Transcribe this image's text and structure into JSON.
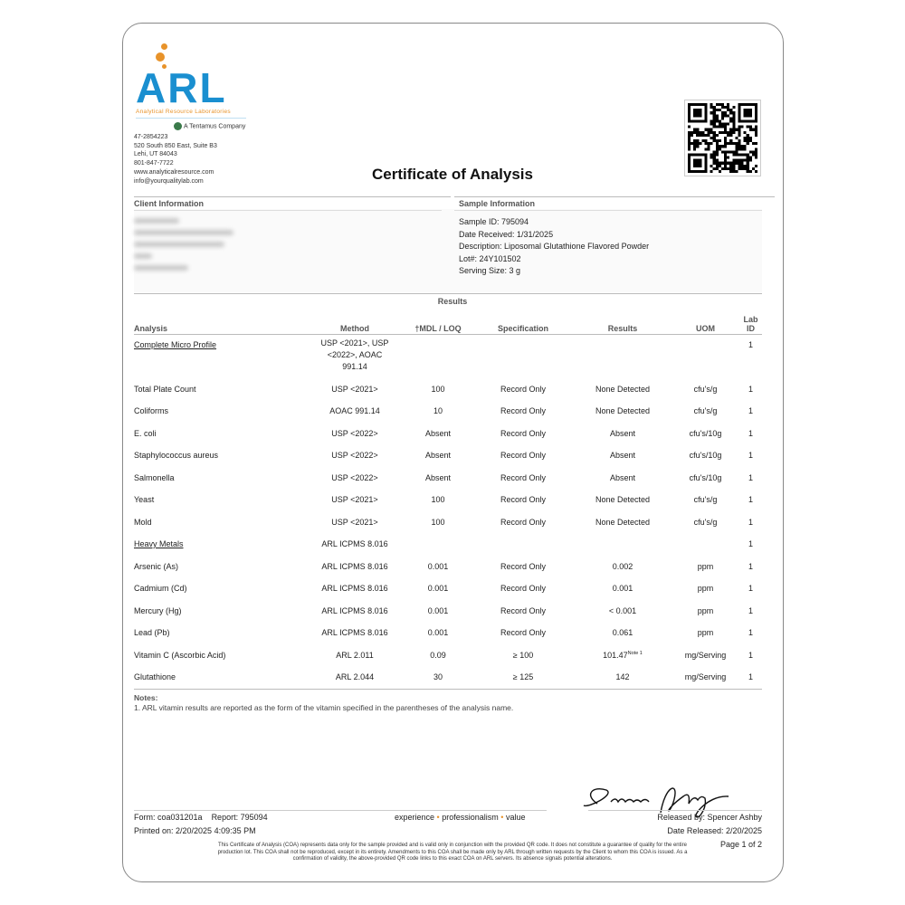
{
  "header": {
    "logo_text": "ARL",
    "logo_tagline": "Analytical Resource Laboratories",
    "parent_company": "A Tentamus Company",
    "address_lines": [
      "47-2854223",
      "520 South 850 East, Suite B3",
      "Lehi, UT 84043",
      "801-847-7722",
      "www.analyticalresource.com",
      "info@yourqualitylab.com"
    ],
    "title": "Certificate of Analysis"
  },
  "client": {
    "heading": "Client Information"
  },
  "sample": {
    "heading": "Sample Information",
    "lines": [
      "Sample ID: 795094",
      "Date Received: 1/31/2025",
      "Description: Liposomal Glutathione Flavored Powder",
      "Lot#: 24Y101502",
      "Serving Size: 3 g"
    ]
  },
  "results": {
    "heading": "Results",
    "columns": [
      "Analysis",
      "Method",
      "†MDL / LOQ",
      "Specification",
      "Results",
      "UOM",
      "Lab ID"
    ],
    "rows": [
      {
        "analysis": "Complete Micro Profile",
        "method": "USP <2021>, USP <2022>, AOAC 991.14",
        "mdl": "",
        "spec": "",
        "result": "",
        "uom": "",
        "lab": "1",
        "group": true
      },
      {
        "analysis": "Total Plate Count",
        "method": "USP <2021>",
        "mdl": "100",
        "spec": "Record Only",
        "result": "None Detected",
        "uom": "cfu's/g",
        "lab": "1"
      },
      {
        "analysis": "Coliforms",
        "method": "AOAC 991.14",
        "mdl": "10",
        "spec": "Record Only",
        "result": "None Detected",
        "uom": "cfu's/g",
        "lab": "1"
      },
      {
        "analysis": "E. coli",
        "method": "USP <2022>",
        "mdl": "Absent",
        "spec": "Record Only",
        "result": "Absent",
        "uom": "cfu's/10g",
        "lab": "1"
      },
      {
        "analysis": "Staphylococcus aureus",
        "method": "USP <2022>",
        "mdl": "Absent",
        "spec": "Record Only",
        "result": "Absent",
        "uom": "cfu's/10g",
        "lab": "1"
      },
      {
        "analysis": "Salmonella",
        "method": "USP <2022>",
        "mdl": "Absent",
        "spec": "Record Only",
        "result": "Absent",
        "uom": "cfu's/10g",
        "lab": "1"
      },
      {
        "analysis": "Yeast",
        "method": "USP <2021>",
        "mdl": "100",
        "spec": "Record Only",
        "result": "None Detected",
        "uom": "cfu's/g",
        "lab": "1"
      },
      {
        "analysis": "Mold",
        "method": "USP <2021>",
        "mdl": "100",
        "spec": "Record Only",
        "result": "None Detected",
        "uom": "cfu's/g",
        "lab": "1"
      },
      {
        "analysis": "Heavy Metals",
        "method": "ARL ICPMS 8.016",
        "mdl": "",
        "spec": "",
        "result": "",
        "uom": "",
        "lab": "1",
        "group": true
      },
      {
        "analysis": "Arsenic (As)",
        "method": "ARL ICPMS 8.016",
        "mdl": "0.001",
        "spec": "Record Only",
        "result": "0.002",
        "uom": "ppm",
        "lab": "1"
      },
      {
        "analysis": "Cadmium (Cd)",
        "method": "ARL ICPMS 8.016",
        "mdl": "0.001",
        "spec": "Record Only",
        "result": "0.001",
        "uom": "ppm",
        "lab": "1"
      },
      {
        "analysis": "Mercury (Hg)",
        "method": "ARL ICPMS 8.016",
        "mdl": "0.001",
        "spec": "Record Only",
        "result": "< 0.001",
        "uom": "ppm",
        "lab": "1"
      },
      {
        "analysis": "Lead (Pb)",
        "method": "ARL ICPMS 8.016",
        "mdl": "0.001",
        "spec": "Record Only",
        "result": "0.061",
        "uom": "ppm",
        "lab": "1"
      },
      {
        "analysis": "Vitamin C (Ascorbic Acid)",
        "method": "ARL 2.011",
        "mdl": "0.09",
        "spec": "≥ 100",
        "result": "101.47",
        "note": "Note 1",
        "uom": "mg/Serving",
        "lab": "1"
      },
      {
        "analysis": "Glutathione",
        "method": "ARL 2.044",
        "mdl": "30",
        "spec": "≥ 125",
        "result": "142",
        "uom": "mg/Serving",
        "lab": "1"
      }
    ]
  },
  "notes": {
    "heading": "Notes:",
    "items": [
      "1. ARL vitamin results are reported as the form of the vitamin specified in the parentheses of the analysis name."
    ]
  },
  "footer": {
    "form": "Form: coa031201a",
    "report": "Report: 795094",
    "printed": "Printed on: 2/20/2025 4:09:35 PM",
    "motto": [
      "experience",
      "professionalism",
      "value"
    ],
    "released_by": "Released by: Spencer Ashby",
    "date_released": "Date Released: 2/20/2025",
    "page": "Page 1 of 2",
    "signature": "Spencer Ashby",
    "disclaimer": "This Certificate of Analysis (COA) represents data only for the sample provided and is valid only in conjunction with the provided QR code. It does not constitute a guarantee of quality for the entire production lot. This COA shall not be reproduced, except in its entirety. Amendments to this COA shall be made only by ARL through written requests by the Client to whom this COA is issued. As a confirmation of validity, the above-provided QR code links to this exact COA on ARL servers. Its absence signals potential alterations."
  },
  "colors": {
    "brand_blue": "#1a8fd0",
    "brand_orange": "#e8932a"
  }
}
